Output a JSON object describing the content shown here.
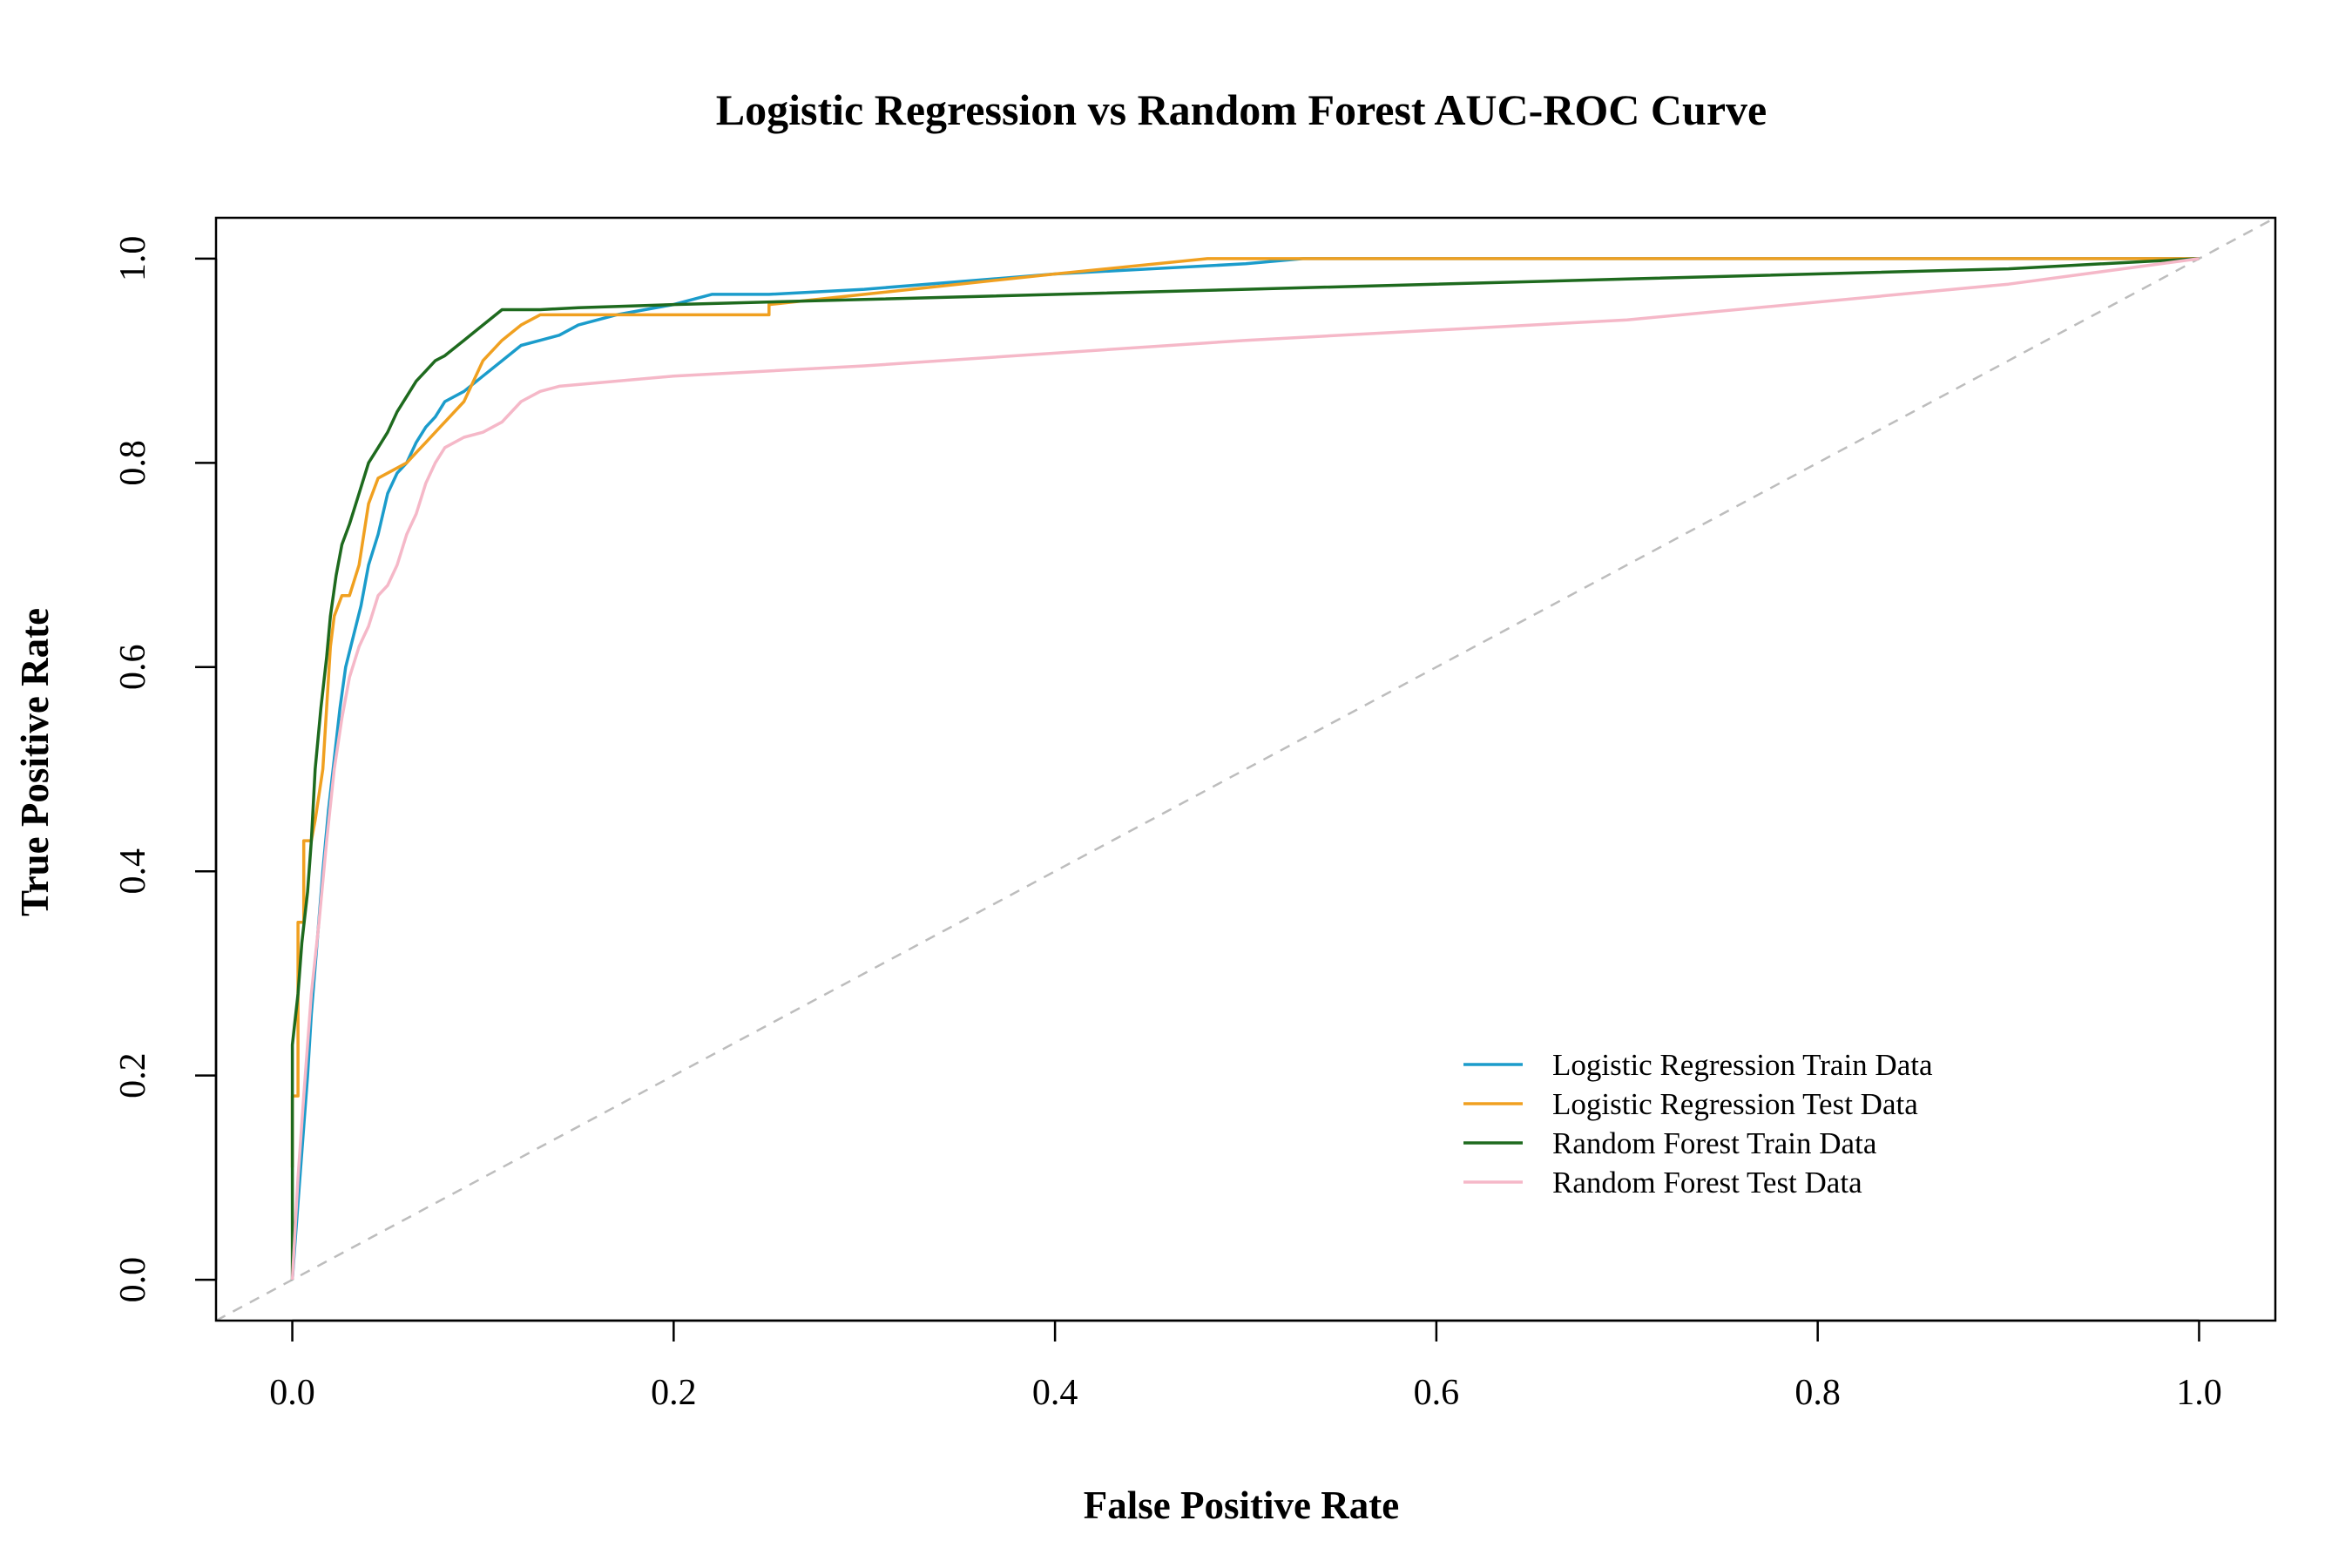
{
  "chart_data": {
    "type": "line",
    "title": "Logistic Regression vs Random Forest AUC-ROC Curve",
    "xlabel": "False Positive Rate",
    "ylabel": "True Positive Rate",
    "xlim": [
      -0.04,
      1.04
    ],
    "ylim": [
      -0.04,
      1.04
    ],
    "xticks": [
      0.0,
      0.2,
      0.4,
      0.6,
      0.8,
      1.0
    ],
    "yticks": [
      0.0,
      0.2,
      0.4,
      0.6,
      0.8,
      1.0
    ],
    "xtick_labels": [
      "0.0",
      "0.2",
      "0.4",
      "0.6",
      "0.8",
      "1.0"
    ],
    "ytick_labels": [
      "0.0",
      "0.2",
      "0.4",
      "0.6",
      "0.8",
      "1.0"
    ],
    "grid": false,
    "legend_position": "bottom-right",
    "diagonal": {
      "style": "dashed",
      "color": "#bdbdbd"
    },
    "series": [
      {
        "name": "Logistic Regression Train Data",
        "color": "#1b9ccb",
        "x": [
          0.0,
          0.002,
          0.004,
          0.006,
          0.008,
          0.01,
          0.013,
          0.016,
          0.019,
          0.022,
          0.025,
          0.028,
          0.032,
          0.036,
          0.04,
          0.045,
          0.05,
          0.055,
          0.06,
          0.065,
          0.07,
          0.075,
          0.08,
          0.09,
          0.1,
          0.11,
          0.12,
          0.13,
          0.14,
          0.15,
          0.17,
          0.2,
          0.22,
          0.25,
          0.3,
          0.4,
          0.5,
          0.53,
          0.7,
          1.0
        ],
        "y": [
          0.0,
          0.05,
          0.1,
          0.15,
          0.2,
          0.26,
          0.33,
          0.4,
          0.46,
          0.51,
          0.56,
          0.6,
          0.63,
          0.66,
          0.7,
          0.73,
          0.77,
          0.79,
          0.8,
          0.82,
          0.835,
          0.845,
          0.86,
          0.87,
          0.885,
          0.9,
          0.915,
          0.92,
          0.925,
          0.935,
          0.945,
          0.955,
          0.965,
          0.965,
          0.97,
          0.985,
          0.995,
          1.0,
          1.0,
          1.0
        ]
      },
      {
        "name": "Logistic Regression Test Data",
        "color": "#f0a020",
        "x": [
          0.0,
          0.0,
          0.003,
          0.003,
          0.006,
          0.006,
          0.01,
          0.012,
          0.016,
          0.02,
          0.022,
          0.026,
          0.03,
          0.035,
          0.04,
          0.045,
          0.05,
          0.06,
          0.065,
          0.07,
          0.08,
          0.09,
          0.1,
          0.11,
          0.12,
          0.13,
          0.14,
          0.16,
          0.2,
          0.25,
          0.25,
          0.3,
          0.4,
          0.48,
          1.0
        ],
        "y": [
          0.11,
          0.18,
          0.18,
          0.35,
          0.35,
          0.43,
          0.43,
          0.45,
          0.5,
          0.62,
          0.65,
          0.67,
          0.67,
          0.7,
          0.76,
          0.785,
          0.79,
          0.8,
          0.81,
          0.82,
          0.84,
          0.86,
          0.9,
          0.92,
          0.935,
          0.945,
          0.945,
          0.945,
          0.945,
          0.945,
          0.955,
          0.965,
          0.985,
          1.0,
          1.0
        ]
      },
      {
        "name": "Random Forest Train Data",
        "color": "#1e6a1e",
        "x": [
          0.0,
          0.0,
          0.003,
          0.005,
          0.008,
          0.01,
          0.012,
          0.015,
          0.018,
          0.02,
          0.023,
          0.026,
          0.03,
          0.035,
          0.04,
          0.045,
          0.05,
          0.055,
          0.06,
          0.065,
          0.07,
          0.075,
          0.08,
          0.09,
          0.1,
          0.11,
          0.13,
          0.15,
          0.2,
          0.3,
          0.5,
          0.7,
          0.9,
          1.0
        ],
        "y": [
          0.0,
          0.23,
          0.28,
          0.33,
          0.38,
          0.43,
          0.5,
          0.56,
          0.61,
          0.65,
          0.69,
          0.72,
          0.74,
          0.77,
          0.8,
          0.815,
          0.83,
          0.85,
          0.865,
          0.88,
          0.89,
          0.9,
          0.905,
          0.92,
          0.935,
          0.95,
          0.95,
          0.952,
          0.955,
          0.96,
          0.97,
          0.98,
          0.99,
          1.0
        ]
      },
      {
        "name": "Random Forest Test Data",
        "color": "#f5b8c8",
        "x": [
          0.0,
          0.003,
          0.006,
          0.01,
          0.014,
          0.018,
          0.022,
          0.026,
          0.03,
          0.035,
          0.04,
          0.045,
          0.05,
          0.055,
          0.06,
          0.065,
          0.07,
          0.075,
          0.08,
          0.09,
          0.1,
          0.11,
          0.12,
          0.13,
          0.14,
          0.2,
          0.3,
          0.5,
          0.7,
          0.9,
          1.0
        ],
        "y": [
          0.0,
          0.1,
          0.18,
          0.28,
          0.35,
          0.43,
          0.5,
          0.55,
          0.59,
          0.62,
          0.64,
          0.67,
          0.68,
          0.7,
          0.73,
          0.75,
          0.78,
          0.8,
          0.815,
          0.825,
          0.83,
          0.84,
          0.86,
          0.87,
          0.875,
          0.885,
          0.895,
          0.92,
          0.94,
          0.975,
          1.0
        ]
      }
    ]
  }
}
